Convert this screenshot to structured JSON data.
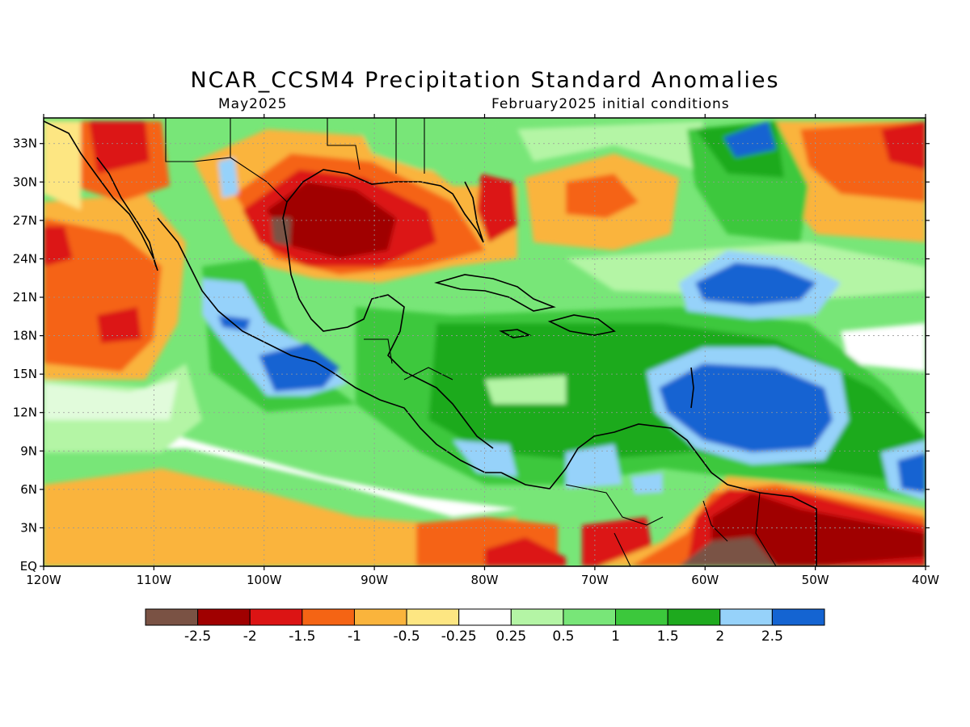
{
  "title": "NCAR_CCSM4 Precipitation Standard Anomalies",
  "subtitle_left": "May2025",
  "subtitle_right": "February2025 initial conditions",
  "map": {
    "lon_range": [
      -120,
      -40
    ],
    "lat_range": [
      0,
      35
    ],
    "lat_labels": [
      "EQ",
      "3N",
      "6N",
      "9N",
      "12N",
      "15N",
      "18N",
      "21N",
      "24N",
      "27N",
      "30N",
      "33N"
    ],
    "lon_labels": [
      "120W",
      "110W",
      "100W",
      "90W",
      "80W",
      "70W",
      "60W",
      "50W",
      "40W"
    ],
    "features": {
      "dry_anomalies": [
        "Gulf of Mexico / Texas",
        "Northern South America (Guianas)",
        "Eastern Pacific north of equator",
        "Northwest Mexico / Baja"
      ],
      "wet_anomalies": [
        "Central tropical Atlantic",
        "Caribbean Sea",
        "Southern Mexico Pacific coast",
        "Panama / Colombia"
      ]
    }
  },
  "legend": {
    "labels": [
      "-2.5",
      "-2",
      "-1.5",
      "-1",
      "-0.5",
      "-0.25",
      "0.25",
      "0.5",
      "1",
      "1.5",
      "2",
      "2.5"
    ],
    "colors": [
      "#7a5244",
      "#a00000",
      "#dc1414",
      "#f56414",
      "#fab43c",
      "#fde682",
      "#ffffff",
      "#b4f5a5",
      "#78e678",
      "#3cc83c",
      "#1eaa1e",
      "#96d2fa",
      "#1464d2"
    ]
  }
}
